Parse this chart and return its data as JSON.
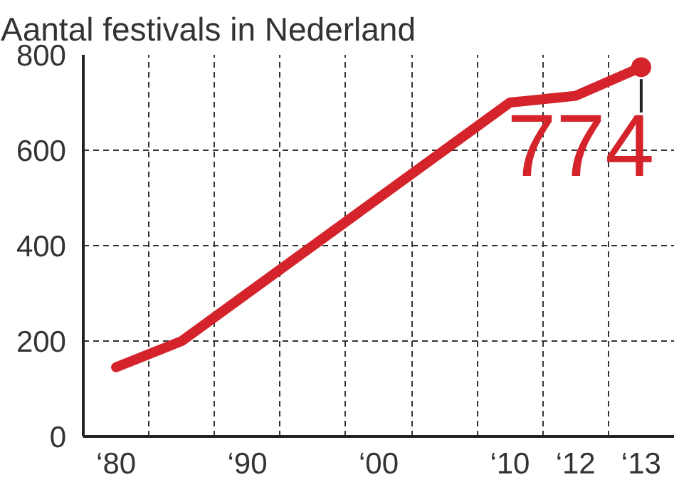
{
  "chart_data": {
    "type": "line",
    "title": "Aantal festivals in Nederland",
    "categories": [
      "‘80",
      null,
      "‘90",
      null,
      "‘00",
      null,
      "‘10",
      "‘12",
      "‘13"
    ],
    "series": [
      {
        "color": "#d4232b",
        "values": [
          145,
          200,
          300,
          400,
          500,
          600,
          700,
          714,
          774
        ]
      }
    ],
    "value_labels": [
      null,
      null,
      null,
      null,
      null,
      null,
      null,
      null,
      "774"
    ],
    "ylim": [
      0,
      800
    ],
    "yticks": [
      0,
      200,
      400,
      600,
      800
    ],
    "grid": true,
    "line_style": "solid"
  }
}
